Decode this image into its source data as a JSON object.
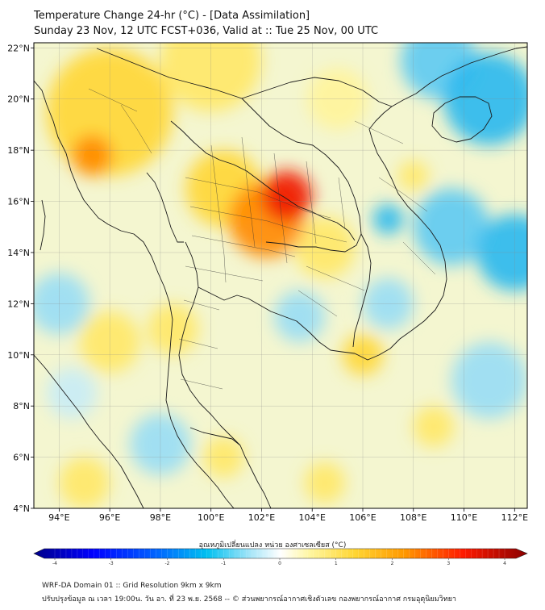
{
  "header": {
    "title": "Temperature Change 24-hr (°C) - [Data Assimilation]",
    "subtitle": "Sunday 23 Nov, 12 UTC FCST+036, Valid at :: Tue 25 Nov, 00 UTC"
  },
  "map": {
    "extent": {
      "lon": [
        93,
        112.5
      ],
      "lat": [
        4,
        22.2
      ]
    },
    "lat_ticks": [
      {
        "value": 22,
        "label": "22°N"
      },
      {
        "value": 20,
        "label": "20°N"
      },
      {
        "value": 18,
        "label": "18°N"
      },
      {
        "value": 16,
        "label": "16°N"
      },
      {
        "value": 14,
        "label": "14°N"
      },
      {
        "value": 12,
        "label": "12°N"
      },
      {
        "value": 10,
        "label": "10°N"
      },
      {
        "value": 8,
        "label": "8°N"
      },
      {
        "value": 6,
        "label": "6°N"
      },
      {
        "value": 4,
        "label": "4°N"
      }
    ],
    "lon_ticks": [
      {
        "value": 94,
        "label": "94°E"
      },
      {
        "value": 96,
        "label": "96°E"
      },
      {
        "value": 98,
        "label": "98°E"
      },
      {
        "value": 100,
        "label": "100°E"
      },
      {
        "value": 102,
        "label": "102°E"
      },
      {
        "value": 104,
        "label": "104°E"
      },
      {
        "value": 106,
        "label": "106°E"
      },
      {
        "value": 108,
        "label": "108°E"
      },
      {
        "value": 110,
        "label": "110°E"
      },
      {
        "value": 112,
        "label": "112°E"
      }
    ],
    "warm_areas": [
      {
        "lon": 103.0,
        "lat": 16.2,
        "value": 3.2,
        "spread": 1.0
      },
      {
        "lon": 102.2,
        "lat": 15.3,
        "value": 2.2,
        "spread": 1.5
      },
      {
        "lon": 95.3,
        "lat": 17.8,
        "value": 2.3,
        "spread": 0.8
      },
      {
        "lon": 96.0,
        "lat": 19.5,
        "value": 1.0,
        "spread": 2.5
      },
      {
        "lon": 100.0,
        "lat": 21.5,
        "value": 0.9,
        "spread": 2.0
      },
      {
        "lon": 100.5,
        "lat": 16.5,
        "value": 1.0,
        "spread": 1.5
      },
      {
        "lon": 104.5,
        "lat": 14.2,
        "value": 0.9,
        "spread": 1.2
      },
      {
        "lon": 106.0,
        "lat": 10.0,
        "value": 1.1,
        "spread": 0.8
      },
      {
        "lon": 98.5,
        "lat": 11.0,
        "value": 0.6,
        "spread": 1.0
      },
      {
        "lon": 100.5,
        "lat": 6.0,
        "value": 0.8,
        "spread": 0.8
      },
      {
        "lon": 104.5,
        "lat": 5.0,
        "value": 0.7,
        "spread": 0.8
      },
      {
        "lon": 95.0,
        "lat": 5.0,
        "value": 0.8,
        "spread": 1.0
      },
      {
        "lon": 96.0,
        "lat": 10.5,
        "value": 0.5,
        "spread": 1.2
      },
      {
        "lon": 108.8,
        "lat": 7.2,
        "value": 0.6,
        "spread": 0.8
      },
      {
        "lon": 108.0,
        "lat": 17.0,
        "value": 0.8,
        "spread": 0.6
      },
      {
        "lon": 105.0,
        "lat": 20.0,
        "value": 0.4,
        "spread": 1.2
      }
    ],
    "cool_areas": [
      {
        "lon": 107.0,
        "lat": 15.3,
        "value": -1.8,
        "spread": 0.6
      },
      {
        "lon": 111.0,
        "lat": 20.0,
        "value": -1.5,
        "spread": 1.8
      },
      {
        "lon": 109.5,
        "lat": 15.0,
        "value": -1.2,
        "spread": 1.5
      },
      {
        "lon": 109.0,
        "lat": 21.5,
        "value": -1.0,
        "spread": 1.5
      },
      {
        "lon": 112.0,
        "lat": 14.0,
        "value": -1.5,
        "spread": 1.5
      },
      {
        "lon": 111.0,
        "lat": 9.0,
        "value": -0.9,
        "spread": 1.5
      },
      {
        "lon": 94.0,
        "lat": 12.0,
        "value": -0.9,
        "spread": 1.2
      },
      {
        "lon": 98.0,
        "lat": 6.5,
        "value": -0.6,
        "spread": 1.2
      },
      {
        "lon": 103.5,
        "lat": 11.5,
        "value": -0.5,
        "spread": 1.0
      },
      {
        "lon": 107.0,
        "lat": 12.0,
        "value": -0.5,
        "spread": 1.0
      },
      {
        "lon": 94.5,
        "lat": 8.5,
        "value": -0.4,
        "spread": 1.0
      }
    ]
  },
  "colorbar": {
    "label": "อุณหภูมิเปลี่ยนแปลง หน่วย องศาเซลเซียส (°C)",
    "min": -4,
    "max": 4,
    "ticks": [
      "-4",
      "-3",
      "-2",
      "-1",
      "0",
      "1",
      "2",
      "3",
      "4"
    ]
  },
  "footer": {
    "line1": "WRF-DA Domain 01 :: Grid Resolution 9km x 9km",
    "line2": "ปรับปรุงข้อมูล ณ เวลา 19:00น. วัน อา. ที่ 23 พ.ย. 2568 -- © ส่วนพยากรณ์อากาศเชิงตัวเลข กองพยากรณ์อากาศ กรมอุตุนิยมวิทยา"
  }
}
